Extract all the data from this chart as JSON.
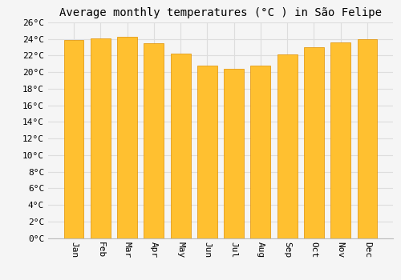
{
  "title": "Average monthly temperatures (°C ) in São Felipe",
  "months": [
    "Jan",
    "Feb",
    "Mar",
    "Apr",
    "May",
    "Jun",
    "Jul",
    "Aug",
    "Sep",
    "Oct",
    "Nov",
    "Dec"
  ],
  "values": [
    23.9,
    24.1,
    24.3,
    23.5,
    22.2,
    20.8,
    20.4,
    20.8,
    22.1,
    23.0,
    23.6,
    24.0
  ],
  "bar_color_top": "#FFC030",
  "bar_color_bottom": "#FFB020",
  "bar_edge_color": "#E09000",
  "ylim": [
    0,
    26
  ],
  "ytick_step": 2,
  "background_color": "#f5f5f5",
  "plot_bg_color": "#f5f5f5",
  "grid_color": "#dddddd",
  "title_fontsize": 10,
  "tick_fontsize": 8,
  "bar_width": 0.75
}
